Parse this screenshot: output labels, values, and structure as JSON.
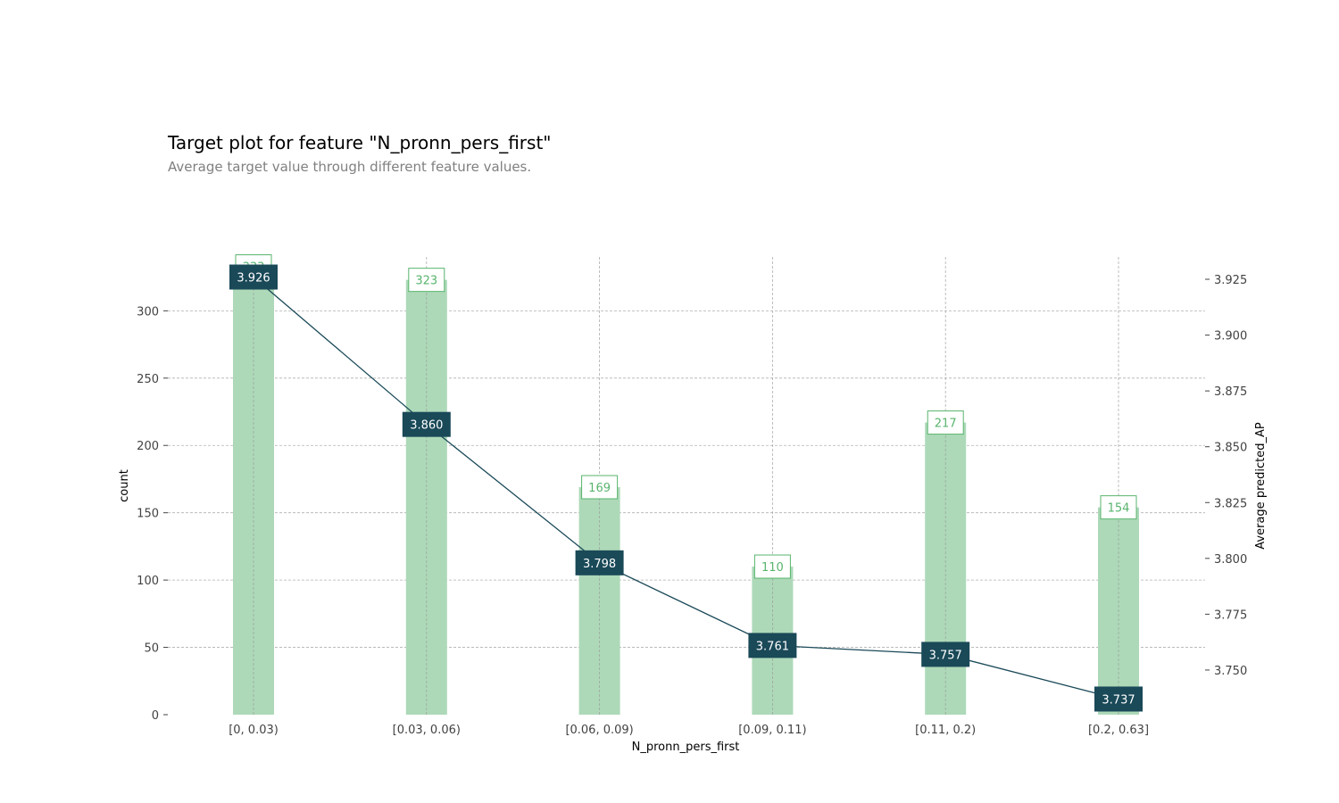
{
  "chart_data": {
    "type": "bar",
    "title": "Target plot for feature \"N_pronn_pers_first\"",
    "subtitle": "Average target value through different feature values.",
    "xlabel": "N_pronn_pers_first",
    "ylabel": "count",
    "y2label": "Average predicted_AP",
    "categories": [
      "[0, 0.03)",
      "[0.03, 0.06)",
      "[0.06, 0.09)",
      "[0.09, 0.11)",
      "[0.11, 0.2)",
      "[0.2, 0.63]"
    ],
    "ylim": [
      0,
      340
    ],
    "yticks": [
      0,
      50,
      100,
      150,
      200,
      250,
      300
    ],
    "y2lim": [
      3.73,
      3.935
    ],
    "y2ticks": [
      3.75,
      3.775,
      3.8,
      3.825,
      3.85,
      3.875,
      3.9,
      3.925
    ],
    "y2tick_labels": [
      "3.750",
      "3.775",
      "3.800",
      "3.825",
      "3.850",
      "3.875",
      "3.900",
      "3.925"
    ],
    "grid": true,
    "series": [
      {
        "name": "count",
        "type": "bar",
        "values": [
          333,
          323,
          169,
          110,
          217,
          154
        ],
        "labels": [
          "333",
          "323",
          "169",
          "110",
          "217",
          "154"
        ],
        "color": "#add9b8",
        "label_color": "#58b46d"
      },
      {
        "name": "Average predicted_AP",
        "type": "line",
        "axis": "right",
        "values": [
          3.926,
          3.86,
          3.798,
          3.761,
          3.757,
          3.737
        ],
        "labels": [
          "3.926",
          "3.860",
          "3.798",
          "3.761",
          "3.757",
          "3.737"
        ],
        "color": "#1a4958"
      }
    ]
  }
}
